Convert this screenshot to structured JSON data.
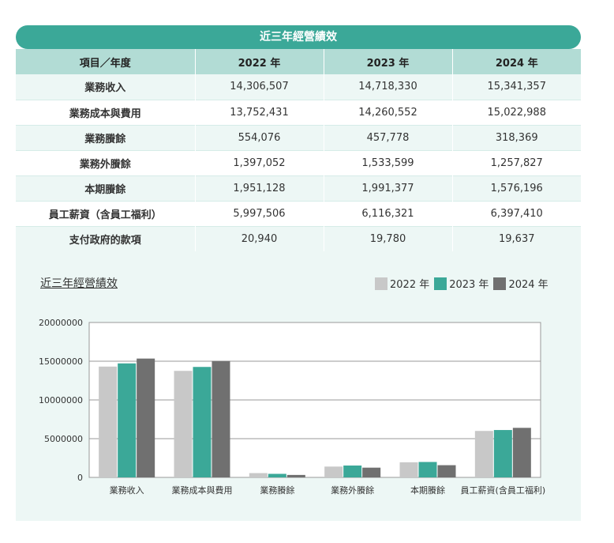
{
  "banner_title": "近三年經營績效",
  "table": {
    "header": [
      "項目／年度",
      "2022 年",
      "2023 年",
      "2024 年"
    ],
    "rows": [
      [
        "業務收入",
        "14,306,507",
        "14,718,330",
        "15,341,357"
      ],
      [
        "業務成本與費用",
        "13,752,431",
        "14,260,552",
        "15,022,988"
      ],
      [
        "業務賸餘",
        "554,076",
        "457,778",
        "318,369"
      ],
      [
        "業務外賸餘",
        "1,397,052",
        "1,533,599",
        "1,257,827"
      ],
      [
        "本期賸餘",
        "1,951,128",
        "1,991,377",
        "1,576,196"
      ],
      [
        "員工薪資（含員工福利）",
        "5,997,506",
        "6,116,321",
        "6,397,410"
      ],
      [
        "支付政府的款項",
        "20,940",
        "19,780",
        "19,637"
      ]
    ]
  },
  "chart_data": {
    "type": "bar",
    "title": "近三年經營績效",
    "categories": [
      "業務收入",
      "業務成本與費用",
      "業務賸餘",
      "業務外賸餘",
      "本期賸餘",
      "員工薪資(含員工福利)"
    ],
    "series": [
      {
        "name": "2022 年",
        "color": "#c8c8c8",
        "values": [
          14306507,
          13752431,
          554076,
          1397052,
          1951128,
          5997506
        ]
      },
      {
        "name": "2023 年",
        "color": "#3ba898",
        "values": [
          14718330,
          14260552,
          457778,
          1533599,
          1991377,
          6116321
        ]
      },
      {
        "name": "2024 年",
        "color": "#707070",
        "values": [
          15341357,
          15022988,
          318369,
          1257827,
          1576196,
          6397410
        ]
      }
    ],
    "ylim": [
      0,
      20000000
    ],
    "yticks": [
      0,
      5000000,
      10000000,
      15000000,
      20000000
    ],
    "ytick_labels": [
      "0",
      "5000000",
      "10000000",
      "15000000",
      "20000000"
    ],
    "xlabel": "",
    "ylabel": "",
    "grid": true,
    "legend_position": "top-right"
  }
}
